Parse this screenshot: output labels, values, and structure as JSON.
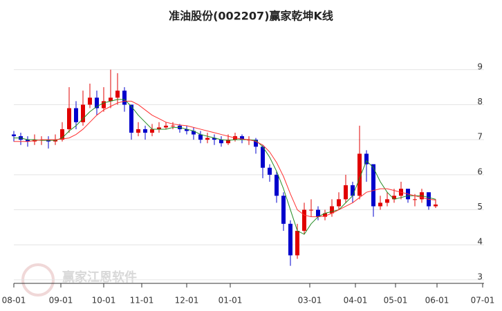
{
  "chart_data": {
    "type": "candlestick",
    "title": "准油股份(002207)赢家乾坤K线",
    "watermark": "赢家江恩软件",
    "up_color": "#e00000",
    "down_color": "#0000cc",
    "open": [
      7.15,
      7.1,
      7.0,
      6.95,
      7.0,
      7.0,
      6.95,
      7.0,
      7.3,
      7.9,
      7.5,
      8.0,
      8.2,
      7.9,
      8.1,
      8.2,
      8.4,
      8.0,
      7.2,
      7.3,
      7.2,
      7.3,
      7.35,
      7.4,
      7.4,
      7.3,
      7.25,
      7.15,
      7.0,
      7.05,
      7.0,
      6.9,
      7.0,
      7.1,
      7.0,
      7.0,
      6.8,
      6.2,
      6.0,
      5.4,
      4.6,
      3.7,
      4.4,
      5.0,
      5.0,
      4.8,
      4.9,
      5.1,
      5.3,
      5.7,
      5.4,
      6.6,
      6.3,
      5.1,
      5.2,
      5.3,
      5.4,
      5.6,
      5.3,
      5.3,
      5.5,
      5.1
    ],
    "high": [
      7.25,
      7.2,
      7.1,
      7.15,
      7.1,
      7.1,
      7.15,
      7.5,
      8.5,
      8.1,
      8.4,
      8.6,
      8.4,
      8.5,
      9.0,
      8.9,
      8.5,
      8.0,
      7.5,
      7.4,
      7.45,
      7.5,
      7.5,
      7.5,
      7.45,
      7.4,
      7.35,
      7.25,
      7.2,
      7.15,
      7.1,
      7.15,
      7.2,
      7.15,
      7.1,
      7.05,
      6.85,
      6.3,
      6.1,
      5.5,
      4.7,
      4.6,
      5.2,
      5.3,
      5.1,
      5.0,
      5.3,
      5.5,
      6.0,
      5.8,
      7.4,
      6.7,
      6.3,
      5.4,
      5.5,
      5.6,
      5.8,
      5.6,
      5.45,
      5.6,
      5.5,
      5.3
    ],
    "low": [
      6.95,
      6.85,
      6.8,
      6.85,
      6.85,
      6.75,
      6.85,
      6.95,
      7.2,
      7.3,
      7.4,
      7.9,
      7.7,
      7.8,
      7.9,
      8.0,
      7.8,
      7.0,
      7.1,
      7.0,
      7.1,
      7.2,
      7.3,
      7.3,
      7.2,
      7.15,
      7.0,
      6.9,
      6.9,
      6.85,
      6.8,
      6.85,
      6.95,
      6.9,
      6.85,
      6.6,
      5.9,
      5.8,
      5.2,
      4.4,
      3.4,
      3.6,
      4.3,
      4.8,
      4.7,
      4.7,
      4.8,
      5.0,
      5.2,
      5.2,
      5.3,
      5.8,
      4.8,
      5.0,
      5.1,
      5.2,
      5.3,
      5.2,
      5.1,
      5.2,
      5.0,
      5.05
    ],
    "close": [
      7.1,
      7.0,
      6.95,
      7.0,
      7.0,
      6.95,
      7.0,
      7.3,
      7.9,
      7.5,
      8.0,
      8.2,
      7.9,
      8.1,
      8.2,
      8.4,
      8.0,
      7.2,
      7.3,
      7.2,
      7.3,
      7.35,
      7.4,
      7.4,
      7.3,
      7.25,
      7.15,
      7.0,
      7.05,
      7.0,
      6.9,
      7.0,
      7.1,
      7.0,
      7.0,
      6.8,
      6.2,
      6.0,
      5.4,
      4.6,
      3.7,
      4.4,
      5.0,
      5.0,
      4.8,
      4.9,
      5.1,
      5.3,
      5.7,
      5.4,
      6.6,
      6.3,
      5.1,
      5.2,
      5.3,
      5.4,
      5.6,
      5.3,
      5.3,
      5.5,
      5.1,
      5.15
    ],
    "lines": [
      {
        "color": "#228b22",
        "values": [
          7.05,
          7.05,
          7.0,
          7.0,
          6.98,
          6.98,
          6.98,
          7.05,
          7.25,
          7.4,
          7.6,
          7.8,
          7.95,
          8.05,
          8.1,
          8.15,
          8.15,
          7.95,
          7.7,
          7.5,
          7.3,
          7.3,
          7.3,
          7.35,
          7.35,
          7.3,
          7.25,
          7.15,
          7.1,
          7.05,
          7.0,
          6.98,
          7.0,
          7.0,
          7.0,
          6.98,
          6.8,
          6.5,
          6.1,
          5.6,
          5.0,
          4.4,
          4.3,
          4.6,
          4.8,
          4.9,
          4.95,
          5.0,
          5.2,
          5.4,
          5.9,
          6.4,
          6.2,
          5.8,
          5.5,
          5.3,
          5.35,
          5.4,
          5.4,
          5.4,
          5.35,
          5.3
        ]
      },
      {
        "color": "#ff3030",
        "values": [
          6.95,
          6.95,
          6.95,
          6.97,
          7.0,
          7.0,
          7.0,
          7.02,
          7.05,
          7.15,
          7.3,
          7.5,
          7.7,
          7.85,
          7.95,
          8.05,
          8.1,
          8.1,
          8.0,
          7.85,
          7.7,
          7.6,
          7.5,
          7.45,
          7.42,
          7.4,
          7.35,
          7.3,
          7.25,
          7.2,
          7.15,
          7.1,
          7.05,
          7.02,
          7.0,
          6.95,
          6.85,
          6.65,
          6.35,
          5.95,
          5.45,
          5.0,
          4.85,
          4.8,
          4.8,
          4.82,
          4.9,
          5.0,
          5.1,
          5.2,
          5.35,
          5.5,
          5.55,
          5.6,
          5.6,
          5.55,
          5.5,
          5.45,
          5.4,
          5.35,
          5.3,
          5.28
        ]
      }
    ],
    "xlim": [
      0,
      68
    ],
    "xticks": [
      {
        "value": 0,
        "label": "08-01"
      },
      {
        "value": 6.8,
        "label": "09-01"
      },
      {
        "value": 13,
        "label": "10-01"
      },
      {
        "value": 18.5,
        "label": "11-01"
      },
      {
        "value": 25,
        "label": "12-01"
      },
      {
        "value": 31.3,
        "label": "01-01"
      },
      {
        "value": 42.8,
        "label": "03-01"
      },
      {
        "value": 49.4,
        "label": "04-01"
      },
      {
        "value": 55.2,
        "label": "05-01"
      },
      {
        "value": 61.2,
        "label": "06-01"
      },
      {
        "value": 67.8,
        "label": "07-01"
      }
    ],
    "ylim": [
      2.9,
      10.1
    ],
    "yticks": [
      3,
      4,
      5,
      6,
      7,
      8,
      9
    ],
    "grid": true
  }
}
